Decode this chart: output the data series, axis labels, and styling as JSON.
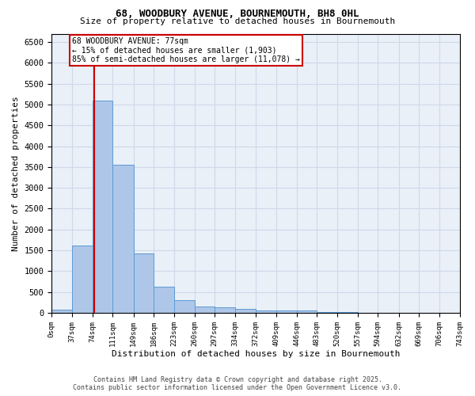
{
  "title1": "68, WOODBURY AVENUE, BOURNEMOUTH, BH8 0HL",
  "title2": "Size of property relative to detached houses in Bournemouth",
  "xlabel": "Distribution of detached houses by size in Bournemouth",
  "ylabel": "Number of detached properties",
  "bar_edges": [
    0,
    37,
    74,
    111,
    149,
    186,
    223,
    260,
    297,
    334,
    372,
    409,
    446,
    483,
    520,
    557,
    594,
    632,
    669,
    706,
    743
  ],
  "bar_heights": [
    75,
    1620,
    5100,
    3550,
    1420,
    620,
    310,
    155,
    130,
    90,
    50,
    55,
    55,
    15,
    10,
    5,
    3,
    2,
    2,
    2
  ],
  "bar_color": "#aec6e8",
  "bar_edge_color": "#5b9bd5",
  "property_line_x": 77,
  "property_line_color": "#cc0000",
  "annotation_text": "68 WOODBURY AVENUE: 77sqm\n← 15% of detached houses are smaller (1,903)\n85% of semi-detached houses are larger (11,078) →",
  "annotation_box_color": "#cc0000",
  "ylim": [
    0,
    6700
  ],
  "yticks": [
    0,
    500,
    1000,
    1500,
    2000,
    2500,
    3000,
    3500,
    4000,
    4500,
    5000,
    5500,
    6000,
    6500
  ],
  "footer1": "Contains HM Land Registry data © Crown copyright and database right 2025.",
  "footer2": "Contains public sector information licensed under the Open Government Licence v3.0.",
  "bg_color": "#ffffff",
  "grid_color": "#d0d8e8",
  "tick_labels": [
    "0sqm",
    "37sqm",
    "74sqm",
    "111sqm",
    "149sqm",
    "186sqm",
    "223sqm",
    "260sqm",
    "297sqm",
    "334sqm",
    "372sqm",
    "409sqm",
    "446sqm",
    "483sqm",
    "520sqm",
    "557sqm",
    "594sqm",
    "632sqm",
    "669sqm",
    "706sqm",
    "743sqm"
  ]
}
